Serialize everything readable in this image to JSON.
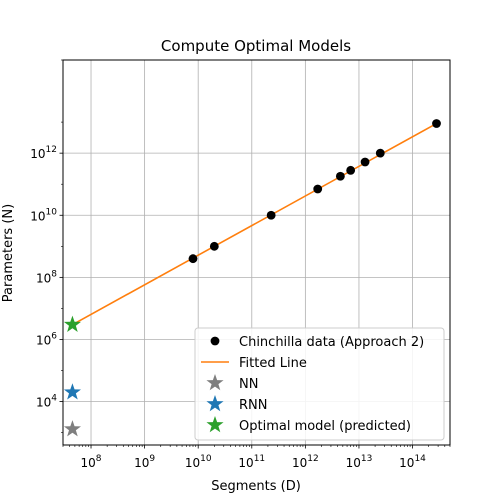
{
  "chart_data": {
    "type": "scatter",
    "title": "Compute Optimal Models",
    "xlabel": "Segments (D)",
    "ylabel": "Parameters (N)",
    "xscale": "log",
    "yscale": "log",
    "xlim": [
      30000000,
      500000000000000
    ],
    "ylim": [
      400,
      1000000000000000
    ],
    "grid": true,
    "legend_position": "lower-right",
    "x_ticks": [
      {
        "value": 100000000,
        "label_base": "10",
        "label_exp": "8"
      },
      {
        "value": 1000000000,
        "label_base": "10",
        "label_exp": "9"
      },
      {
        "value": 10000000000,
        "label_base": "10",
        "label_exp": "10"
      },
      {
        "value": 100000000000,
        "label_base": "10",
        "label_exp": "11"
      },
      {
        "value": 1000000000000,
        "label_base": "10",
        "label_exp": "12"
      },
      {
        "value": 10000000000000,
        "label_base": "10",
        "label_exp": "13"
      },
      {
        "value": 100000000000000,
        "label_base": "10",
        "label_exp": "14"
      }
    ],
    "y_ticks": [
      {
        "value": 10000,
        "label_base": "10",
        "label_exp": "4"
      },
      {
        "value": 1000000,
        "label_base": "10",
        "label_exp": "6"
      },
      {
        "value": 100000000,
        "label_base": "10",
        "label_exp": "8"
      },
      {
        "value": 10000000000,
        "label_base": "10",
        "label_exp": "10"
      },
      {
        "value": 1000000000000,
        "label_base": "10",
        "label_exp": "12"
      }
    ],
    "series": [
      {
        "name": "Chinchilla data (Approach 2)",
        "kind": "scatter",
        "marker": "circle",
        "color": "#000000",
        "points": [
          {
            "x": 8000000000,
            "y": 400000000
          },
          {
            "x": 20000000000,
            "y": 1000000000
          },
          {
            "x": 230000000000,
            "y": 10000000000
          },
          {
            "x": 1700000000000,
            "y": 70000000000
          },
          {
            "x": 4500000000000,
            "y": 180000000000
          },
          {
            "x": 7000000000000,
            "y": 280000000000
          },
          {
            "x": 13000000000000,
            "y": 520000000000
          },
          {
            "x": 25000000000000,
            "y": 1000000000000
          },
          {
            "x": 280000000000000,
            "y": 9000000000000
          }
        ]
      },
      {
        "name": "Fitted Line",
        "kind": "line",
        "color": "#ff7f0e",
        "points": [
          {
            "x": 45000000,
            "y": 3000000
          },
          {
            "x": 280000000000000,
            "y": 9000000000000
          }
        ]
      },
      {
        "name": "NN",
        "kind": "scatter",
        "marker": "star",
        "color": "#7f7f7f",
        "points": [
          {
            "x": 45000000,
            "y": 1300
          }
        ]
      },
      {
        "name": "RNN",
        "kind": "scatter",
        "marker": "star",
        "color": "#1f77b4",
        "points": [
          {
            "x": 45000000,
            "y": 20000
          }
        ]
      },
      {
        "name": "Optimal model (predicted)",
        "kind": "scatter",
        "marker": "star",
        "color": "#2ca02c",
        "points": [
          {
            "x": 45000000,
            "y": 3000000
          }
        ]
      }
    ]
  }
}
